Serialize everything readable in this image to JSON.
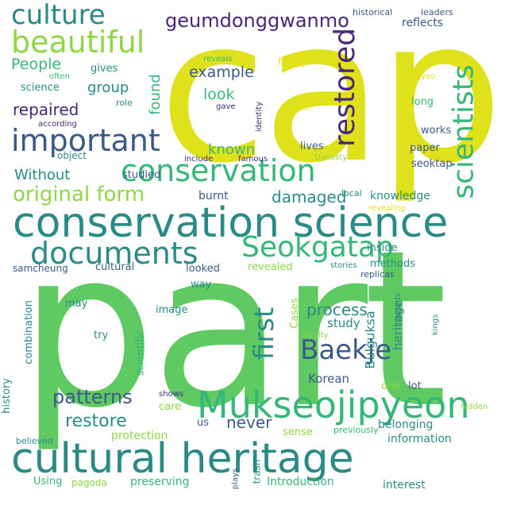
{
  "palette": {
    "background": "#ffffff",
    "yellow": "#dfe11a",
    "green": "#5fc962",
    "teal": "#2a8b86",
    "blue": "#3b5a8a",
    "purple": "#47277a",
    "lightgreen": "#8fd744",
    "seagreen": "#35b779",
    "cyan": "#1f9e89"
  },
  "words": {
    "cap": "cap",
    "part": "part",
    "conservation_science": "conservation science",
    "cultural_heritage": "cultural heritage",
    "documents": "documents",
    "mukseojipyeon": "Mukseojipyeon",
    "conservation": "conservation",
    "important": "important",
    "culture": "culture",
    "beautiful": "beautiful",
    "restored": "restored",
    "scientists": "scientists",
    "seokgatap": "Seokgatap",
    "baekje": "Baekje",
    "first": "first",
    "original_form": "original form",
    "geumdonggwanmo": "geumdonggwanmo",
    "patterns": "patterns",
    "restore": "restore",
    "never": "never",
    "damaged": "damaged",
    "process": "process",
    "repaired": "repaired",
    "people": "People",
    "example": "example",
    "look": "look",
    "known": "known",
    "group": "group",
    "found": "found",
    "without": "Without",
    "burnt": "burnt",
    "knowledge": "knowledge",
    "history": "history",
    "combination": "combination",
    "belonging": "belonging",
    "protection": "protection",
    "preserving": "preserving",
    "introduction": "Introduction",
    "interest": "interest",
    "information": "information",
    "heritage": "heritage",
    "bulguksa": "Bulguksa",
    "study": "study",
    "korean": "Korean",
    "lot": "lot",
    "one": "one",
    "sense": "sense",
    "scientific": "scientific",
    "cases": "Cases",
    "image": "image",
    "try": "try",
    "may": "may",
    "way": "way",
    "cultural": "cultural",
    "looked": "looked",
    "revealed": "revealed",
    "methods": "methods",
    "inside": "inside",
    "samcheung": "samcheung",
    "replicas": "replicas",
    "stories": "stories",
    "local": "local",
    "revealing": "revealing",
    "seoktap": "seoktap",
    "paper": "paper",
    "works": "works",
    "lives": "lives",
    "long": "long",
    "goryeo": "Goryeo",
    "truth": "truth",
    "dynasty": "Dynasty",
    "identity": "identity",
    "famous": "famous",
    "include": "include",
    "gave": "gave",
    "reveals": "reveals",
    "finally": "finally",
    "reflects": "reflects",
    "historical": "historical",
    "leaders": "leaders",
    "gives": "gives",
    "often": "often",
    "science": "science",
    "role": "role",
    "according": "according",
    "object": "object",
    "studied": "studied",
    "care": "care",
    "us": "us",
    "shows": "shows",
    "hidden": "hidden",
    "previously": "previously",
    "rewards": "rewards",
    "kings": "kings",
    "loyalty": "loyalty",
    "believed": "believed",
    "using": "Using",
    "pagoda": "pagoda",
    "plays": "plays",
    "trash": "trash"
  }
}
